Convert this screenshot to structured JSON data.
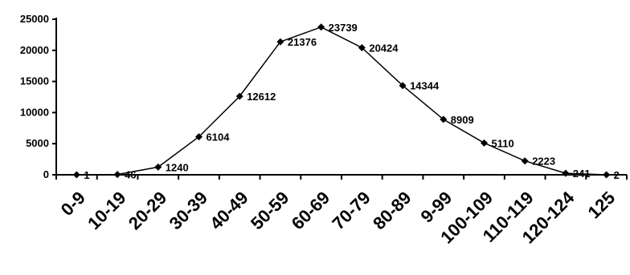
{
  "chart_data": {
    "type": "line",
    "categories": [
      "0-9",
      "10-19",
      "20-29",
      "30-39",
      "40-49",
      "50-59",
      "60-69",
      "70-79",
      "80-89",
      "9-99",
      "100-109",
      "110-119",
      "120-124",
      "125"
    ],
    "series": [
      {
        "values": [
          1,
          46,
          1240,
          6104,
          12612,
          21376,
          23739,
          20424,
          14344,
          8909,
          5110,
          2223,
          241,
          2
        ]
      }
    ],
    "data_labels": [
      "1",
      "46",
      "1240",
      "6104",
      "12612",
      "21376",
      "23739",
      "20424",
      "14344",
      "8909",
      "5110",
      "2223",
      "241",
      "2"
    ],
    "y_ticks": [
      "0",
      "5000",
      "10000",
      "15000",
      "20000",
      "25000"
    ],
    "ylim": [
      0,
      25000
    ],
    "grid": false,
    "legend": "none",
    "title": "",
    "xlabel": "",
    "ylabel": "",
    "line_color": "#000000",
    "marker": "diamond"
  }
}
